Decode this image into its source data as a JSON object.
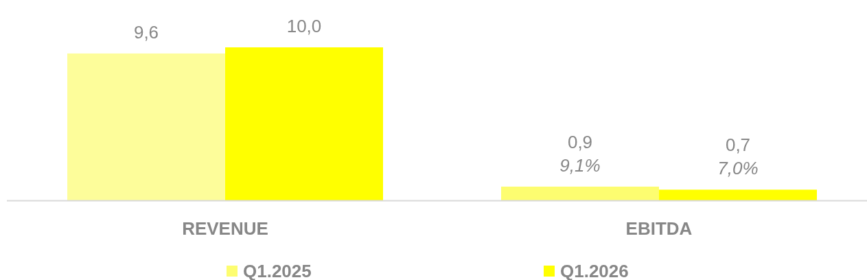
{
  "chart_data": {
    "type": "bar",
    "categories": [
      "REVENUE",
      "EBITDA"
    ],
    "series": [
      {
        "name": "Q1.2025",
        "color": "#fdfd70",
        "colors": [
          "#fdfd9a",
          "#fdfd70"
        ],
        "values": [
          9.6,
          0.9
        ],
        "value_labels": [
          "9,6",
          "0,9\n9,1%"
        ]
      },
      {
        "name": "Q1.2026",
        "color": "#ffff00",
        "values": [
          10.0,
          0.7
        ],
        "value_labels": [
          "10,0",
          "0,7\n7,0%"
        ]
      }
    ],
    "legend": "bottom"
  }
}
